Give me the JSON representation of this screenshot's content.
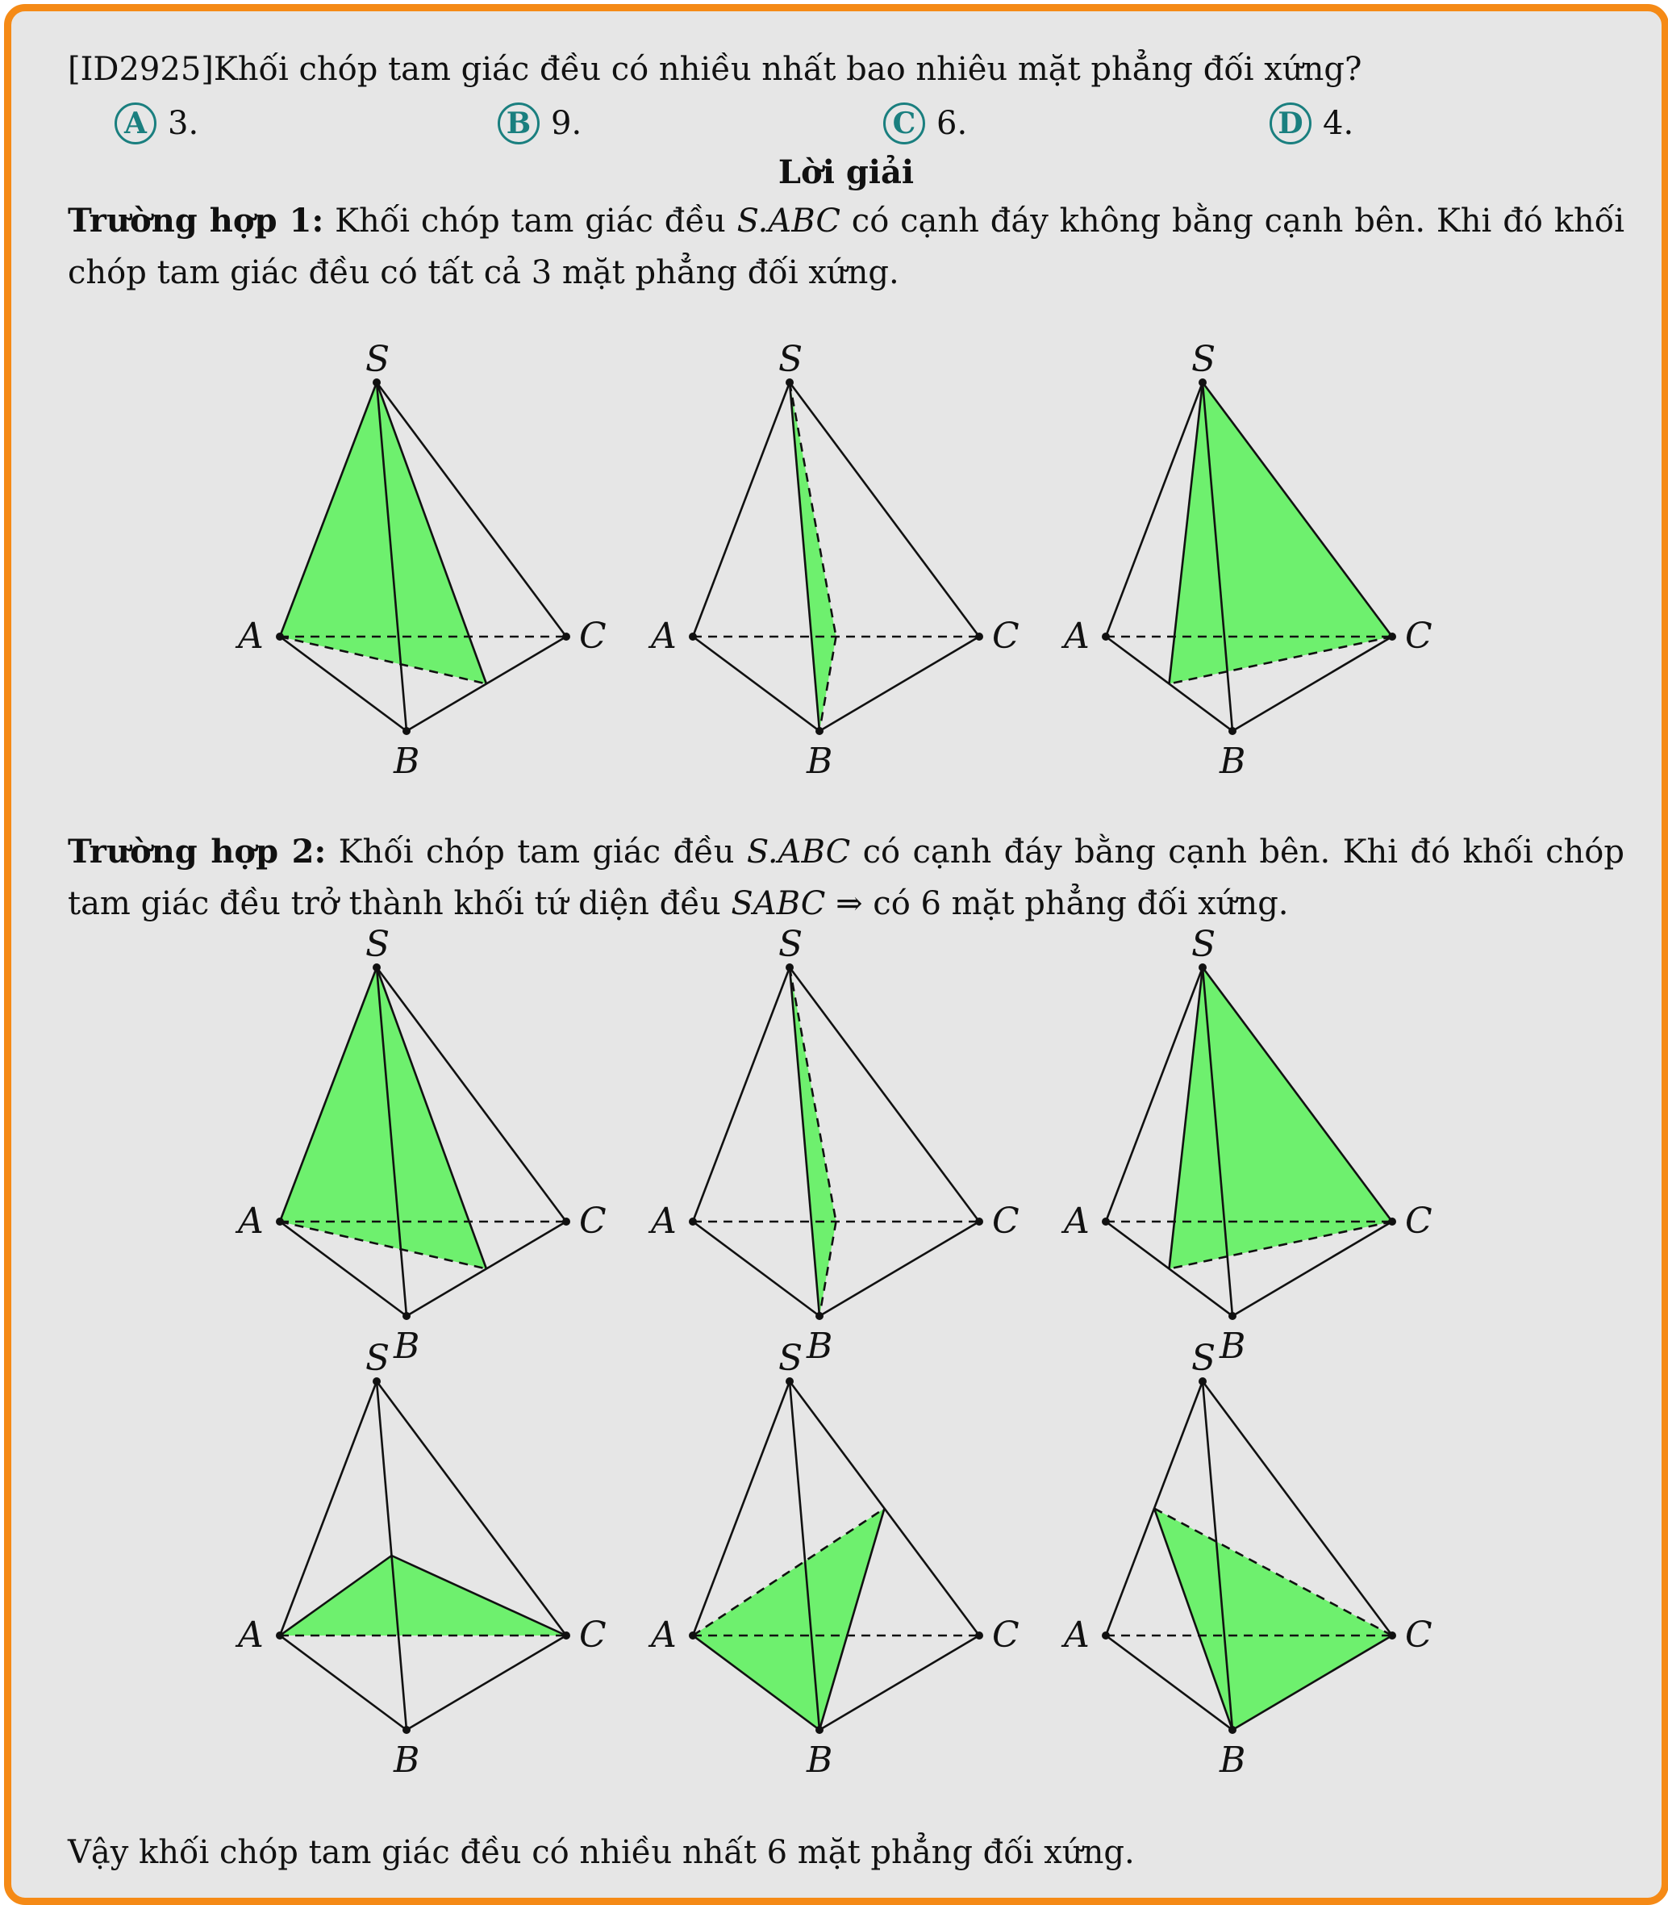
{
  "question": {
    "id": "[ID2925]",
    "text": "Khối chóp tam giác đều có nhiều nhất bao nhiêu mặt phẳng đối xứng?"
  },
  "options": [
    {
      "letter": "A",
      "text": "3."
    },
    {
      "letter": "B",
      "text": "9."
    },
    {
      "letter": "C",
      "text": "6."
    },
    {
      "letter": "D",
      "text": "4."
    }
  ],
  "solution": {
    "heading": "Lời giải",
    "case1": {
      "title": "Trường hợp 1:",
      "text_a": "Khối chóp tam giác đều",
      "math": "S.ABC",
      "text_b": "có cạnh đáy không bằng cạnh bên. Khi đó khối chóp tam giác đều có tất cả 3 mặt phẳng đối xứng."
    },
    "case2": {
      "title": "Trường hợp 2:",
      "text_a": "Khối chóp tam giác đều",
      "math": "S.ABC",
      "text_b": "có cạnh đáy bằng cạnh bên. Khi đó khối chóp tam giác đều trở thành khối tứ diện đều",
      "math2": "SABC",
      "arrow": "⇒",
      "text_c": "có 6 mặt phẳng đối xứng."
    },
    "conclusion": "Vậy khối chóp tam giác đều có nhiều nhất 6 mặt phẳng đối xứng."
  },
  "vertex_labels": {
    "S": "S",
    "A": "A",
    "B": "B",
    "C": "C"
  },
  "colors": {
    "frame": "#f58a16",
    "background": "#e6e6e6",
    "plane_fill": "#6ef06e",
    "option_circle": "#1a7f7f"
  }
}
